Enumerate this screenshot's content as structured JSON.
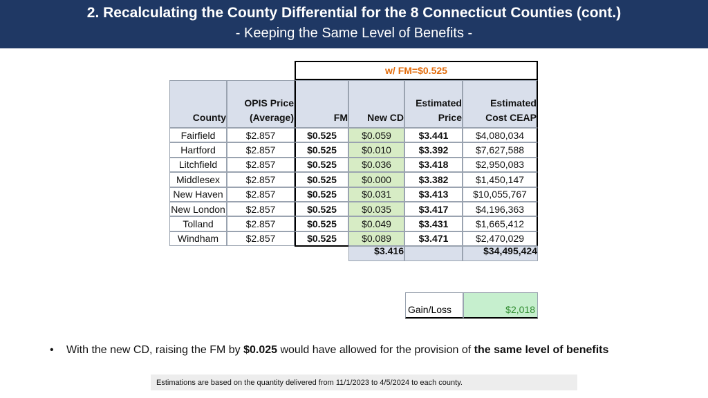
{
  "header": {
    "title": "2. Recalculating the County Differential for the 8 Connecticut Counties (cont.)",
    "subtitle": "- Keeping the Same Level of Benefits -"
  },
  "table": {
    "scenario_label": "w/ FM=$0.525",
    "columns": [
      "County",
      "OPIS Price (Average)",
      "FM",
      "New CD",
      "Estimated Price",
      "Estimated Cost CEAP"
    ],
    "col_header_lines": [
      [
        "County"
      ],
      [
        "OPIS Price",
        "(Average)"
      ],
      [
        "FM"
      ],
      [
        "New CD"
      ],
      [
        "Estimated",
        "Price"
      ],
      [
        "Estimated",
        "Cost CEAP"
      ]
    ],
    "rows": [
      [
        "Fairfield",
        "$2.857",
        "$0.525",
        "$0.059",
        "$3.441",
        "$4,080,034"
      ],
      [
        "Hartford",
        "$2.857",
        "$0.525",
        "$0.010",
        "$3.392",
        "$7,627,588"
      ],
      [
        "Litchfield",
        "$2.857",
        "$0.525",
        "$0.036",
        "$3.418",
        "$2,950,083"
      ],
      [
        "Middlesex",
        "$2.857",
        "$0.525",
        "$0.000",
        "$3.382",
        "$1,450,147"
      ],
      [
        "New Haven",
        "$2.857",
        "$0.525",
        "$0.031",
        "$3.413",
        "$10,055,767"
      ],
      [
        "New London",
        "$2.857",
        "$0.525",
        "$0.035",
        "$3.417",
        "$4,196,363"
      ],
      [
        "Tolland",
        "$2.857",
        "$0.525",
        "$0.049",
        "$3.431",
        "$1,665,412"
      ],
      [
        "Windham",
        "$2.857",
        "$0.525",
        "$0.089",
        "$3.471",
        "$2,470,029"
      ]
    ],
    "totals": {
      "new_cd": "$3.416",
      "estimated_cost": "$34,495,424"
    }
  },
  "gain_loss": {
    "label": "Gain/Loss",
    "value": "$2,018"
  },
  "bullet": {
    "pre": "With the new CD, raising the FM by ",
    "bold1": "$0.025",
    "mid": " would have allowed for the provision of ",
    "bold2": "the same level of benefits"
  },
  "note": "Estimations are based on the quantity delivered from 11/1/2023 to 4/5/2024 to each county.",
  "colors": {
    "header_bg": "#1f3864",
    "green": "#d7ecc5",
    "orange": "#e26b0a",
    "gain_text": "#2e8b2e"
  }
}
